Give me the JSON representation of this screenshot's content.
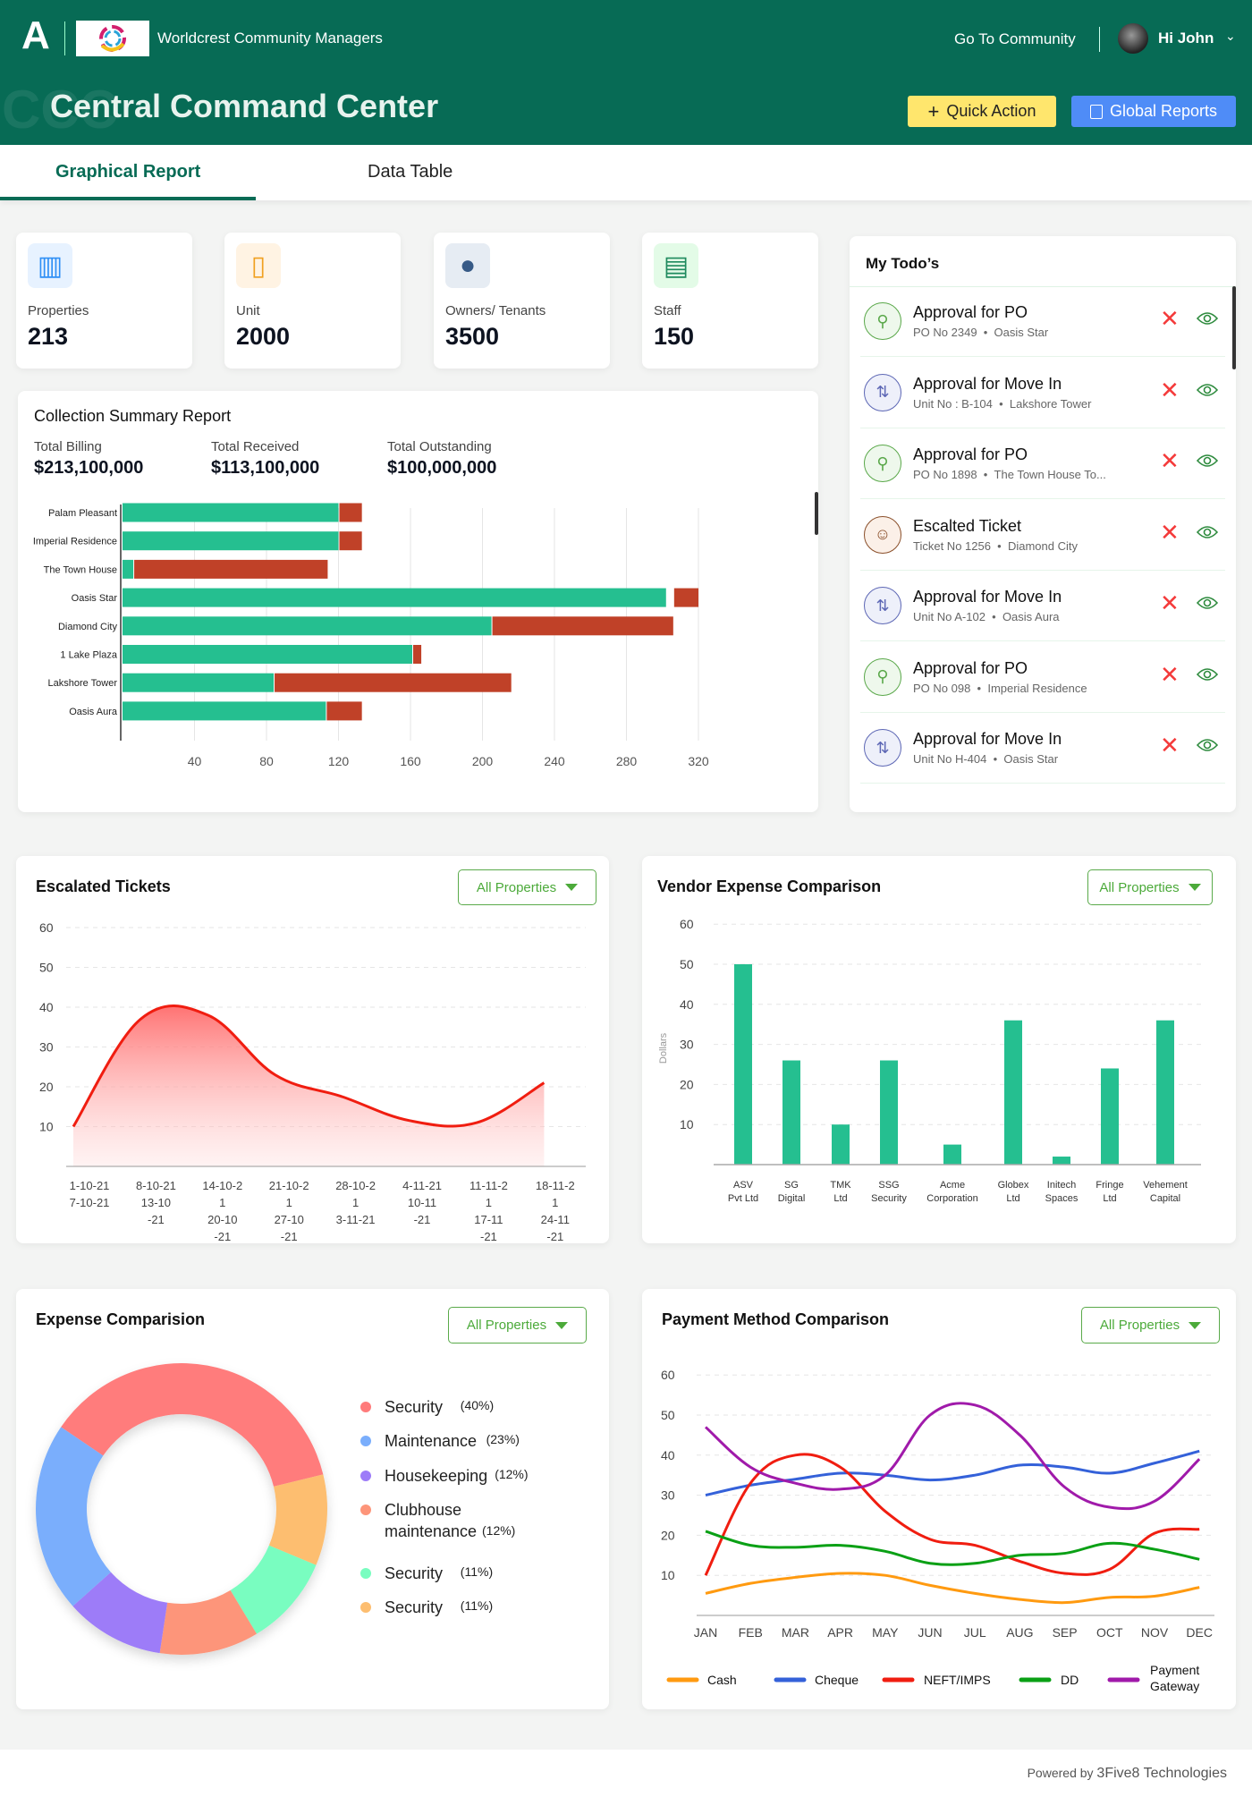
{
  "header": {
    "company": "Worldcrest Community Managers",
    "go_to_community": "Go To Community",
    "greeting": "Hi John",
    "page_title": "Central Command Center",
    "watermark": "CCC",
    "quick_action": "Quick Action",
    "global_reports": "Global Reports",
    "bg_color": "#076b55"
  },
  "tabs": [
    {
      "label": "Graphical Report",
      "active": true
    },
    {
      "label": "Data Table",
      "active": false
    }
  ],
  "stats": [
    {
      "label": "Properties",
      "value": "213",
      "icon": "building-icon"
    },
    {
      "label": "Unit",
      "value": "2000",
      "icon": "door-icon"
    },
    {
      "label": "Owners/ Tenants",
      "value": "3500",
      "icon": "person-icon"
    },
    {
      "label": "Staff",
      "value": "150",
      "icon": "id-badge-icon"
    }
  ],
  "collection": {
    "title": "Collection Summary Report",
    "totals": [
      {
        "label": "Total Billing",
        "value": "$213,100,000"
      },
      {
        "label": "Total Received",
        "value": "$113,100,000"
      },
      {
        "label": "Total Outstanding",
        "value": "$100,000,000"
      }
    ]
  },
  "todos": {
    "title": "My Todo’s",
    "items": [
      {
        "title": "Approval for PO",
        "ref": "PO No 2349",
        "place": "Oasis Star",
        "type": "po"
      },
      {
        "title": "Approval for Move In",
        "ref": "Unit No : B-104",
        "place": "Lakshore Tower",
        "type": "move"
      },
      {
        "title": "Approval for PO",
        "ref": "PO No 1898",
        "place": "The Town House To...",
        "type": "po"
      },
      {
        "title": "Escalted Ticket",
        "ref": "Ticket No 1256",
        "place": "Diamond City",
        "type": "ticket"
      },
      {
        "title": "Approval for Move In",
        "ref": "Unit No A-102",
        "place": "Oasis Aura",
        "type": "move"
      },
      {
        "title": "Approval for PO",
        "ref": "PO No 098",
        "place": "Imperial Residence",
        "type": "po"
      },
      {
        "title": "Approval for Move In",
        "ref": "Unit No H-404",
        "place": "Oasis Star",
        "type": "move"
      }
    ]
  },
  "filters": {
    "all_properties": "All Properties"
  },
  "footer": {
    "powered_by": "Powered by",
    "company": "3Five8 Technologies"
  },
  "chart_data": [
    {
      "id": "collection",
      "type": "bar",
      "orientation": "horizontal",
      "stacked": true,
      "categories": [
        "Palam Pleasant",
        "Imperial Residence",
        "The Town House",
        "Oasis Star",
        "Diamond City",
        "1 Lake Plaza",
        "Lakshore Tower",
        "Oasis Aura"
      ],
      "series": [
        {
          "values": [
            120,
            120,
            6,
            302,
            205,
            161,
            84,
            113
          ],
          "color": "#25bf90"
        },
        {
          "values": [
            13,
            13,
            108,
            14,
            101,
            5,
            132,
            20
          ],
          "color": "#c04128"
        }
      ],
      "xticks": [
        40,
        80,
        120,
        160,
        200,
        240,
        280,
        320
      ],
      "xlim": [
        0,
        330
      ],
      "grid": true
    },
    {
      "id": "escalated",
      "type": "area",
      "title": "Escalated Tickets",
      "categories": [
        [
          "1-10-21",
          "7-10-21"
        ],
        [
          "8-10-21",
          "13-10",
          "-21"
        ],
        [
          "14-10-2",
          "1",
          "20-10",
          "-21"
        ],
        [
          "21-10-2",
          "1",
          "27-10",
          "-21"
        ],
        [
          "28-10-2",
          "1",
          "3-11-21"
        ],
        [
          "4-11-21",
          "10-11",
          "-21"
        ],
        [
          "11-11-2",
          "1",
          "17-11",
          "-21"
        ],
        [
          "18-11-2",
          "1",
          "24-11",
          "-21"
        ]
      ],
      "values": [
        10,
        37,
        38,
        23,
        17.5,
        11.5,
        11,
        21
      ],
      "ylim": [
        0,
        60
      ],
      "yticks": [
        10,
        20,
        30,
        40,
        50,
        60
      ],
      "color": "#f01d10",
      "grid": true
    },
    {
      "id": "vendor",
      "type": "bar",
      "title": "Vendor Expense Comparison",
      "ylabel": "Dollars",
      "categories": [
        [
          "ASV",
          "Pvt Ltd"
        ],
        [
          "SG",
          "Digital"
        ],
        [
          "TMK",
          "Ltd"
        ],
        [
          "SSG",
          "Security"
        ],
        [
          "Acme",
          "Corporation"
        ],
        [
          "Globex",
          "Ltd"
        ],
        [
          "Initech",
          "Spaces"
        ],
        [
          "Fringe",
          "Ltd"
        ],
        [
          "Vehement",
          "Capital"
        ]
      ],
      "values": [
        50,
        26,
        10,
        26,
        5,
        36,
        2,
        24,
        36
      ],
      "ylim": [
        0,
        60
      ],
      "yticks": [
        10,
        20,
        30,
        40,
        50,
        60
      ],
      "color": "#25bf90",
      "grid": true
    },
    {
      "id": "expense",
      "type": "pie",
      "donut": true,
      "title": "Expense Comparision",
      "slices": [
        {
          "label": "Security",
          "pct": "(40%)",
          "value": 40,
          "color": "#ff7b7b"
        },
        {
          "label": "Maintenance",
          "pct": "(23%)",
          "value": 23,
          "color": "#7aaefc"
        },
        {
          "label": "Housekeeping",
          "pct": "(12%)",
          "value": 12,
          "color": "#9d7cf8"
        },
        {
          "label": "Clubhouse maintenance",
          "pct": "(12%)",
          "value": 12,
          "color": "#fd957a"
        },
        {
          "label": "Security",
          "pct": "(11%)",
          "value": 11,
          "color": "#79fdc0"
        },
        {
          "label": "Security",
          "pct": "(11%)",
          "value": 11,
          "color": "#fdbe70"
        }
      ],
      "legend": "right"
    },
    {
      "id": "payment",
      "type": "line",
      "title": "Payment Method Comparison",
      "categories": [
        "JAN",
        "FEB",
        "MAR",
        "APR",
        "MAY",
        "JUN",
        "JUL",
        "AUG",
        "SEP",
        "OCT",
        "NOV",
        "DEC"
      ],
      "ylim": [
        0,
        60
      ],
      "yticks": [
        10,
        20,
        30,
        40,
        50,
        60
      ],
      "grid": true,
      "legend": "bottom",
      "series": [
        {
          "name": "Cash",
          "color": "#ff9a10",
          "values": [
            5.5,
            8,
            9.5,
            10.5,
            10,
            7.5,
            5.5,
            4,
            3.2,
            4.5,
            4.8,
            7
          ]
        },
        {
          "name": "Cheque",
          "color": "#3461d9",
          "values": [
            30,
            32.5,
            34,
            35.5,
            35,
            33.8,
            35,
            37.5,
            37,
            35.5,
            38,
            41
          ]
        },
        {
          "name": "NEFT/IMPS",
          "color": "#f01d10",
          "values": [
            10,
            33,
            40,
            37,
            26,
            19,
            17.5,
            13.5,
            10.5,
            11.5,
            20.5,
            21.5
          ]
        },
        {
          "name": "DD",
          "color": "#0aa015",
          "values": [
            21,
            17.5,
            17,
            17.5,
            16,
            13,
            13,
            15,
            15.5,
            18,
            16.5,
            14
          ]
        },
        {
          "name": "Payment Gateway",
          "color": "#a01aaa",
          "values": [
            47,
            37,
            33,
            31.5,
            35,
            50,
            52.5,
            45,
            32,
            27,
            28.5,
            39
          ]
        }
      ]
    }
  ]
}
